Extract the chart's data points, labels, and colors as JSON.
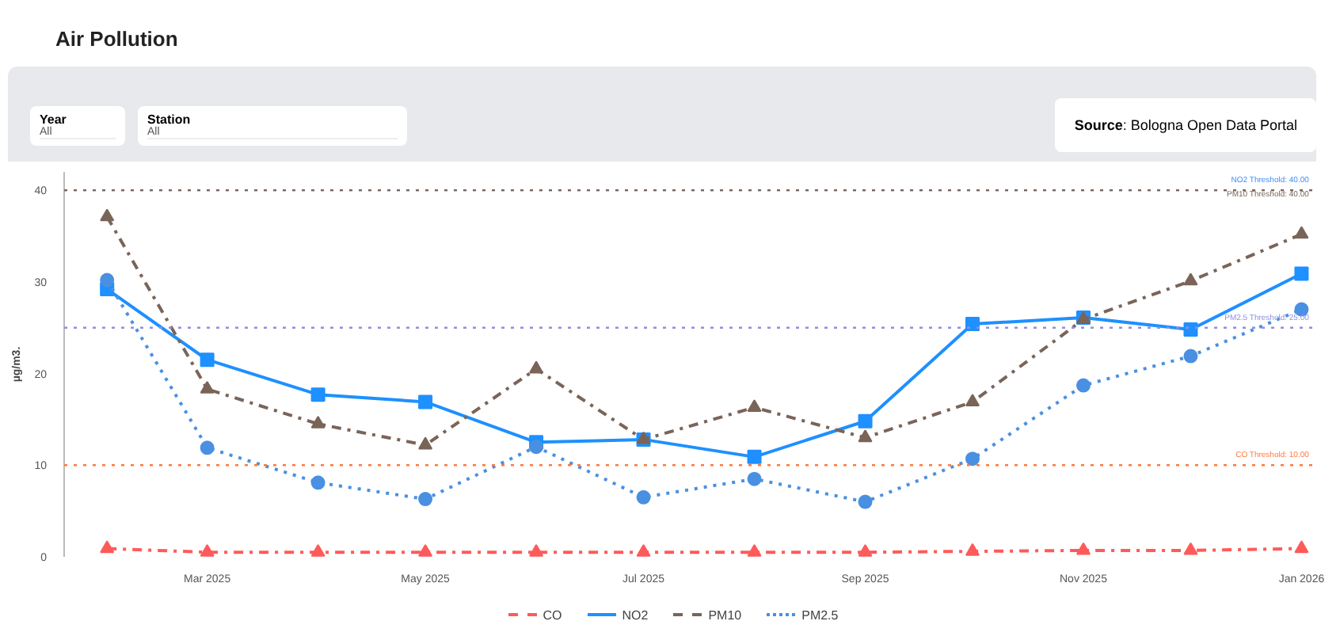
{
  "chart_data": {
    "type": "line",
    "title": "Air Pollution",
    "annotations": [
      "Year",
      "All",
      "Station",
      "All",
      "Source: Bologna Open Data Portal"
    ],
    "ylabel": "µg/m3.",
    "x": [
      "2025-02-01",
      "2025-03-01",
      "2025-04-01",
      "2025-05-01",
      "2025-06-01",
      "2025-07-01",
      "2025-08-01",
      "2025-09-01",
      "2025-10-01",
      "2025-11-01",
      "2025-12-01",
      "2026-01-01"
    ],
    "xlim": [
      "2025-01-20",
      "2026-01-04"
    ],
    "xticks": [
      {
        "value": "2025-03-01",
        "label": "Mar 2025"
      },
      {
        "value": "2025-05-01",
        "label": "May 2025"
      },
      {
        "value": "2025-07-01",
        "label": "Jul 2025"
      },
      {
        "value": "2025-09-01",
        "label": "Sep 2025"
      },
      {
        "value": "2025-11-01",
        "label": "Nov 2025"
      },
      {
        "value": "2026-01-01",
        "label": "Jan 2026"
      }
    ],
    "ylim": [
      0,
      42
    ],
    "yticks": [
      0,
      10,
      20,
      30,
      40
    ],
    "series": [
      {
        "name": "CO",
        "color": "#ff5a5a",
        "marker": "triangle",
        "line_style": "dashdot",
        "values": [
          0.9,
          0.5,
          0.5,
          0.5,
          0.5,
          0.5,
          0.5,
          0.5,
          0.6,
          0.7,
          0.7,
          0.9
        ]
      },
      {
        "name": "NO2",
        "color": "#1e90ff",
        "marker": "square",
        "line_style": "solid",
        "values": [
          29.2,
          21.5,
          17.7,
          16.9,
          12.5,
          12.8,
          10.9,
          14.8,
          25.4,
          26.1,
          24.8,
          30.9
        ]
      },
      {
        "name": "PM10",
        "color": "#7a6458",
        "marker": "triangle",
        "line_style": "dashdot",
        "values": [
          37.1,
          18.3,
          14.5,
          12.2,
          20.5,
          12.8,
          16.3,
          13.0,
          16.9,
          25.9,
          30.1,
          35.2
        ]
      },
      {
        "name": "PM2.5",
        "color": "#4a90e2",
        "marker": "circle",
        "line_style": "dotted",
        "values": [
          30.2,
          11.9,
          8.1,
          6.3,
          12.0,
          6.5,
          8.5,
          6.0,
          10.7,
          18.7,
          21.9,
          27.0
        ]
      }
    ],
    "ref_lines": [
      {
        "axis": "y",
        "value": 40,
        "label": "NO2 Threshold: 40.00",
        "color": "#3d8ef0",
        "line_style": "dotted"
      },
      {
        "axis": "y",
        "value": 40,
        "label": "PM10 Threshold: 40.00",
        "color": "#7a6458",
        "line_style": "dotted"
      },
      {
        "axis": "y",
        "value": 25,
        "label": "PM2.5 Threshold: 25.00",
        "color": "#8f8fe0",
        "line_style": "dotted"
      },
      {
        "axis": "y",
        "value": 10,
        "label": "CO Threshold: 10.00",
        "color": "#ff7a3c",
        "line_style": "dotted"
      }
    ],
    "grid": false,
    "legend": "bottom"
  }
}
